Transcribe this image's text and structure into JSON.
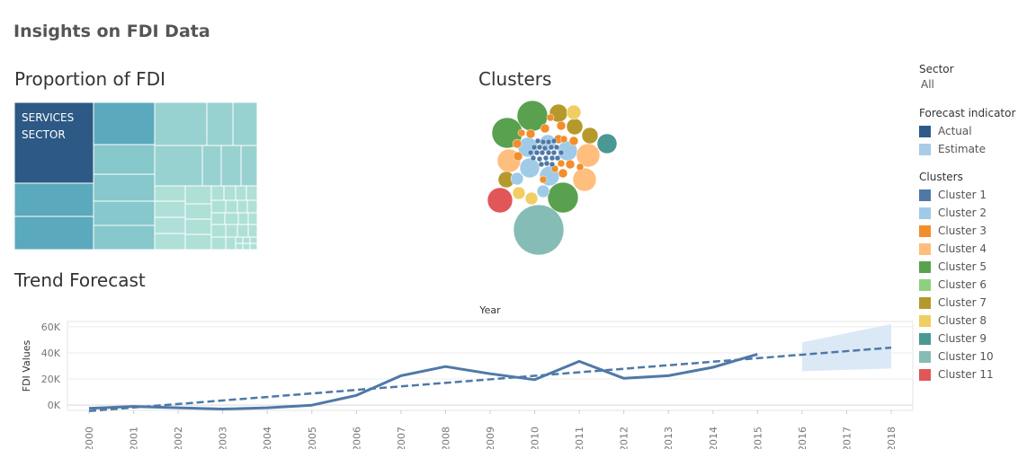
{
  "dashboard": {
    "title": "Insights on FDI Data"
  },
  "sheets": {
    "proportion": "Proportion of FDI",
    "clusters": "Clusters",
    "trend": "Trend Forecast"
  },
  "filters": {
    "sector": {
      "title": "Sector",
      "value": "All"
    }
  },
  "legends": {
    "forecast": {
      "title": "Forecast indicator",
      "items": [
        {
          "label": "Actual",
          "color": "#2e5a8a"
        },
        {
          "label": "Estimate",
          "color": "#a7cbe8"
        }
      ]
    },
    "clusters": {
      "title": "Clusters",
      "items": [
        {
          "label": "Cluster 1",
          "color": "#4e79a7"
        },
        {
          "label": "Cluster 2",
          "color": "#a0cbe8"
        },
        {
          "label": "Cluster 3",
          "color": "#f28e2b"
        },
        {
          "label": "Cluster 4",
          "color": "#ffbe7d"
        },
        {
          "label": "Cluster 5",
          "color": "#59a14f"
        },
        {
          "label": "Cluster 6",
          "color": "#8cd17d"
        },
        {
          "label": "Cluster 7",
          "color": "#b6992d"
        },
        {
          "label": "Cluster 8",
          "color": "#f1ce63"
        },
        {
          "label": "Cluster 9",
          "color": "#499894"
        },
        {
          "label": "Cluster 10",
          "color": "#86bcb6"
        },
        {
          "label": "Cluster 11",
          "color": "#e15759"
        }
      ]
    }
  },
  "chart_data": [
    {
      "type": "treemap",
      "title": "Proportion of FDI",
      "labels": [
        "SERVICES SECTOR"
      ],
      "colors": [
        "#2c5985",
        "#5aa9bd",
        "#86c8cc",
        "#98d2d0",
        "#aee0d8"
      ]
    },
    {
      "type": "scatter",
      "subtype": "packed-bubbles",
      "title": "Clusters",
      "bubble_counts": [
        {
          "cluster": "Cluster 1",
          "count": 22
        },
        {
          "cluster": "Cluster 2",
          "count": 7
        },
        {
          "cluster": "Cluster 3",
          "count": 16
        },
        {
          "cluster": "Cluster 4",
          "count": 3
        },
        {
          "cluster": "Cluster 5",
          "count": 4
        },
        {
          "cluster": "Cluster 6",
          "count": 3
        },
        {
          "cluster": "Cluster 7",
          "count": 3
        },
        {
          "cluster": "Cluster 8",
          "count": 3
        },
        {
          "cluster": "Cluster 9",
          "count": 1
        },
        {
          "cluster": "Cluster 10",
          "count": 1
        },
        {
          "cluster": "Cluster 11",
          "count": 1
        }
      ]
    },
    {
      "type": "line",
      "title": "Trend Forecast",
      "xlabel": "Year",
      "ylabel": "FDI Values",
      "x": [
        2000,
        2001,
        2002,
        2003,
        2004,
        2005,
        2006,
        2007,
        2008,
        2009,
        2010,
        2011,
        2012,
        2013,
        2014,
        2015,
        2016,
        2017,
        2018
      ],
      "ylim": [
        -4000,
        64000
      ],
      "y_ticks": [
        0,
        20000,
        40000,
        60000
      ],
      "y_tick_labels": [
        "0K",
        "20K",
        "40K",
        "60K"
      ],
      "series": [
        {
          "name": "Actual",
          "color": "#4e79a7",
          "x": [
            2000,
            2001,
            2002,
            2003,
            2004,
            2005,
            2006,
            2007,
            2008,
            2009,
            2010,
            2011,
            2012,
            2013,
            2014,
            2015
          ],
          "values": [
            -2500,
            -1000,
            -2000,
            -3000,
            -2000,
            0,
            7500,
            22500,
            29500,
            24000,
            19500,
            33500,
            20500,
            22500,
            29000,
            39000
          ]
        },
        {
          "name": "Trend",
          "style": "dashed",
          "color": "#4e79a7",
          "x": [
            2000,
            2018
          ],
          "values": [
            -4500,
            44000
          ]
        },
        {
          "name": "Estimate band",
          "type": "area",
          "color": "#dbe9f6",
          "x": [
            2016,
            2018
          ],
          "upper": [
            48000,
            62000
          ],
          "lower": [
            26000,
            28000
          ]
        }
      ]
    }
  ]
}
